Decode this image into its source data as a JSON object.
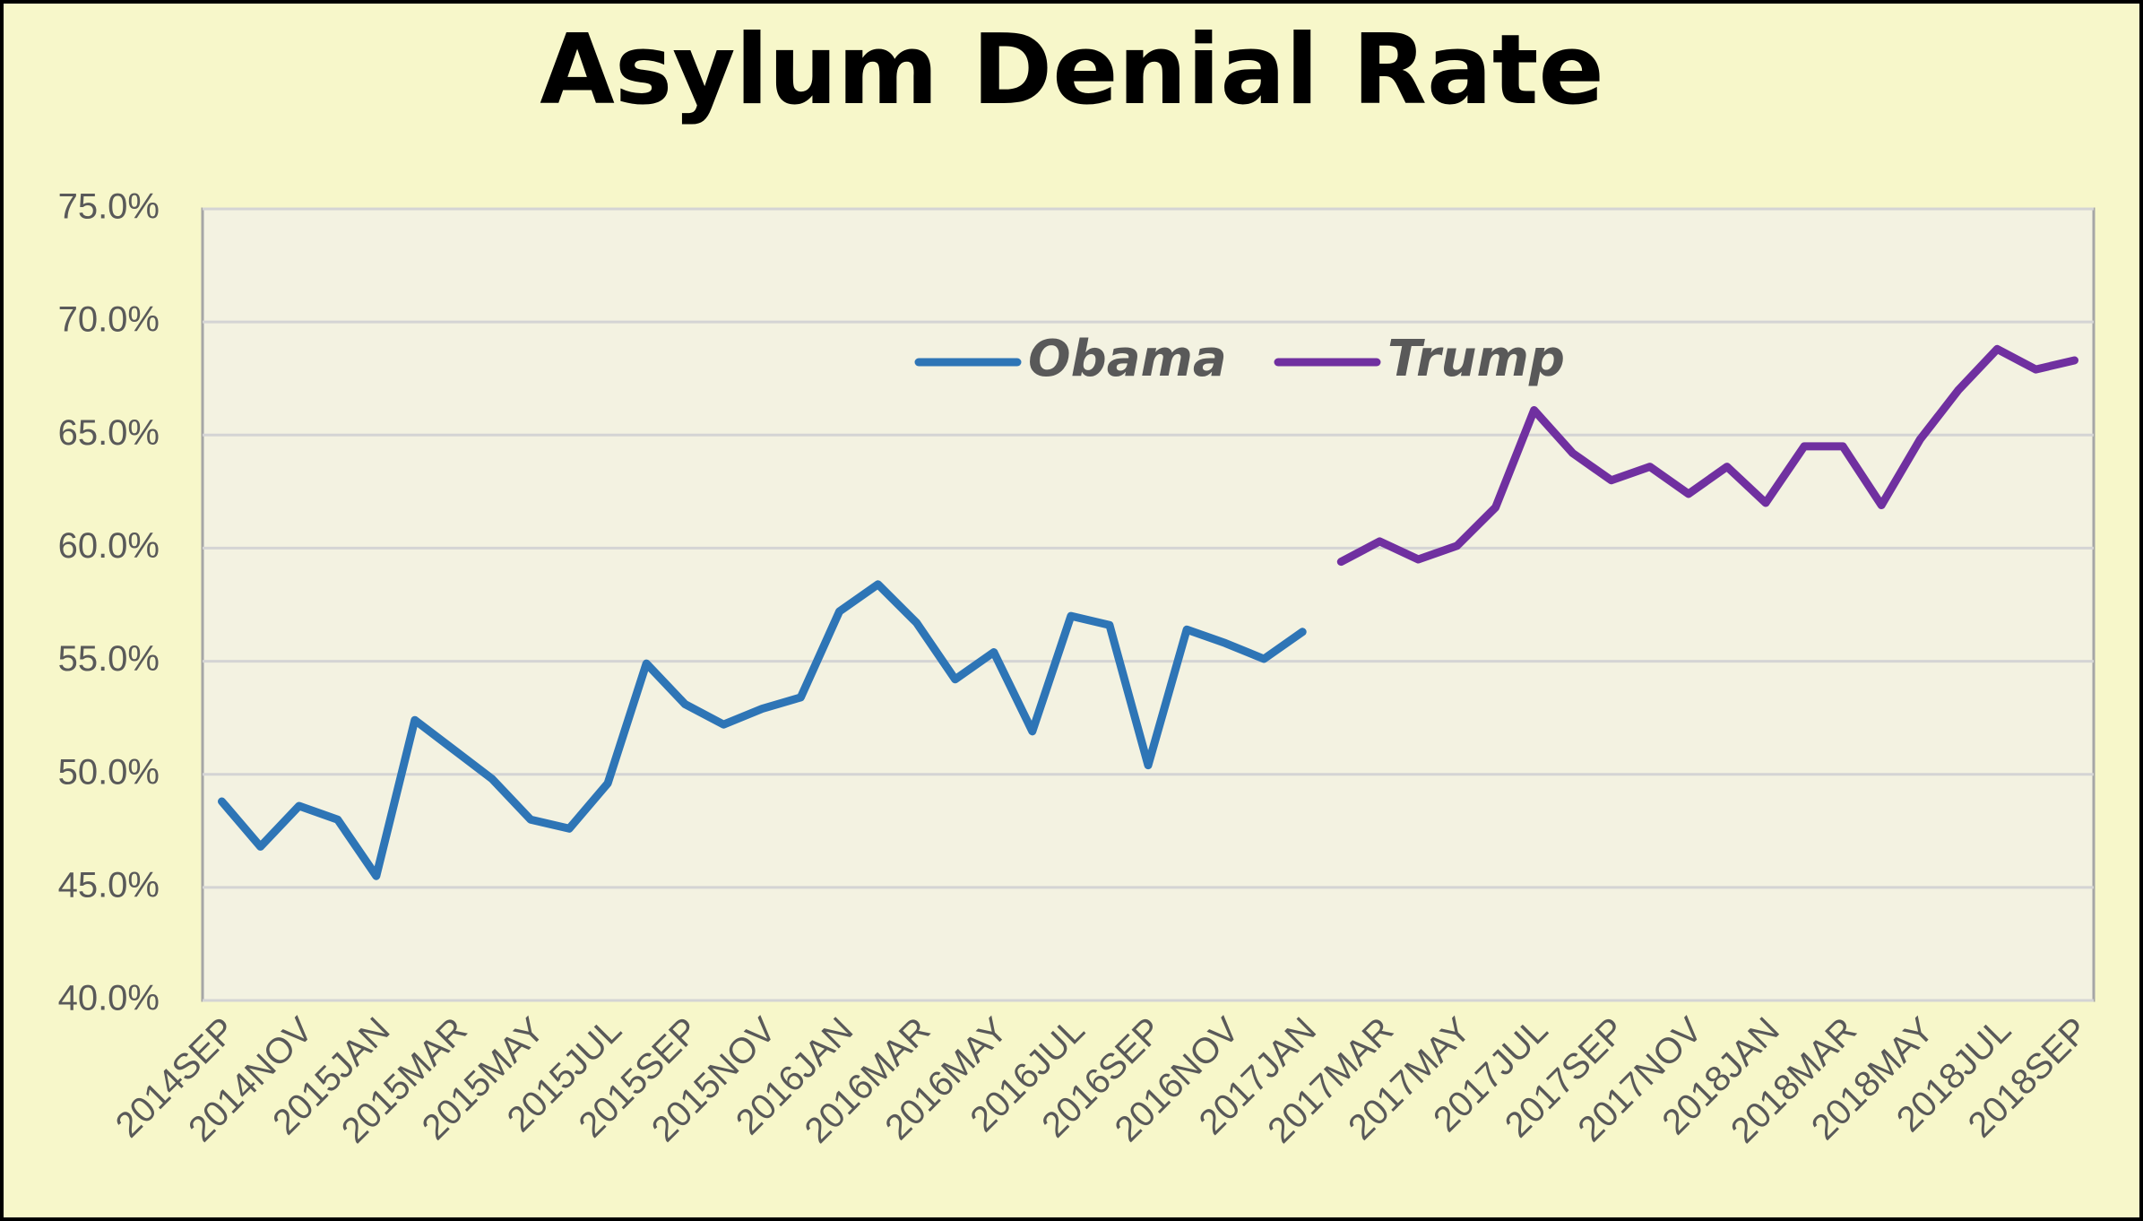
{
  "chart_data": {
    "type": "line",
    "title": "Asylum Denial Rate",
    "categories": [
      "2014SEP",
      null,
      "2014NOV",
      null,
      "2015JAN",
      null,
      "2015MAR",
      null,
      "2015MAY",
      null,
      "2015JUL",
      null,
      "2015SEP",
      null,
      "2015NOV",
      null,
      "2016JAN",
      null,
      "2016MAR",
      null,
      "2016MAY",
      null,
      "2016JUL",
      null,
      "2016SEP",
      null,
      "2016NOV",
      null,
      "2017JAN",
      null,
      "2017MAR",
      null,
      "2017MAY",
      null,
      "2017JUL",
      null,
      "2017SEP",
      null,
      "2017NOV",
      null,
      "2018JAN",
      null,
      "2018MAR",
      null,
      "2018MAY",
      null,
      "2018JUL",
      null,
      "2018SEP"
    ],
    "series": [
      {
        "name": "Obama",
        "color": "#2e75b6",
        "values": [
          48.8,
          46.8,
          48.6,
          48.0,
          45.5,
          52.4,
          51.1,
          49.8,
          48.0,
          47.6,
          49.6,
          54.9,
          53.1,
          52.2,
          52.9,
          53.4,
          57.2,
          58.4,
          56.7,
          54.2,
          55.4,
          51.9,
          57.0,
          56.6,
          50.4,
          56.4,
          55.8,
          55.1,
          56.3,
          null,
          null,
          null,
          null,
          null,
          null,
          null,
          null,
          null,
          null,
          null,
          null,
          null,
          null,
          null,
          null,
          null,
          null,
          null,
          null
        ]
      },
      {
        "name": "Trump",
        "color": "#7030a0",
        "values": [
          null,
          null,
          null,
          null,
          null,
          null,
          null,
          null,
          null,
          null,
          null,
          null,
          null,
          null,
          null,
          null,
          null,
          null,
          null,
          null,
          null,
          null,
          null,
          null,
          null,
          null,
          null,
          null,
          null,
          59.4,
          60.3,
          59.5,
          60.1,
          61.8,
          66.1,
          64.2,
          63.0,
          63.6,
          62.4,
          63.6,
          62.0,
          64.5,
          64.5,
          61.9,
          64.8,
          67.0,
          68.8,
          67.9,
          68.3
        ]
      }
    ],
    "ylim": [
      40,
      75
    ],
    "yticks": [
      {
        "value": 40,
        "label": "40.0%"
      },
      {
        "value": 45,
        "label": "45.0%"
      },
      {
        "value": 50,
        "label": "50.0%"
      },
      {
        "value": 55,
        "label": "55.0%"
      },
      {
        "value": 60,
        "label": "60.0%"
      },
      {
        "value": 65,
        "label": "65.0%"
      },
      {
        "value": 70,
        "label": "70.0%"
      },
      {
        "value": 75,
        "label": "75.0%"
      }
    ],
    "grid": true,
    "legend": "top"
  }
}
